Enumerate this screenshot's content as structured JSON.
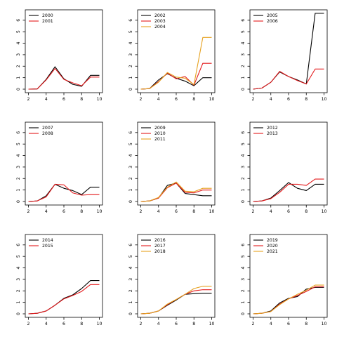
{
  "colors": {
    "axis": "#000000",
    "background": "#ffffff"
  },
  "chart_data": [
    {
      "type": "line",
      "x": [
        2,
        3,
        4,
        5,
        6,
        7,
        8,
        9,
        10
      ],
      "xticks": [
        2,
        4,
        6,
        8,
        10
      ],
      "yticks": [
        0,
        1,
        2,
        3,
        4,
        5,
        6
      ],
      "xlim": [
        2,
        10
      ],
      "ylim": [
        0,
        6.6
      ],
      "legend": "top-left",
      "series": [
        {
          "name": "2000",
          "color": "#000000",
          "values": [
            0,
            0.02,
            0.85,
            1.95,
            0.9,
            0.42,
            0.25,
            1.2,
            1.2
          ]
        },
        {
          "name": "2001",
          "color": "#e41a1c",
          "values": [
            0,
            0.02,
            0.8,
            1.8,
            0.85,
            0.55,
            0.3,
            1.05,
            1.05
          ]
        }
      ]
    },
    {
      "type": "line",
      "x": [
        2,
        3,
        4,
        5,
        6,
        7,
        8,
        9,
        10
      ],
      "xticks": [
        2,
        4,
        6,
        8,
        10
      ],
      "yticks": [
        0,
        1,
        2,
        3,
        4,
        5,
        6
      ],
      "xlim": [
        2,
        10
      ],
      "ylim": [
        0,
        6.6
      ],
      "legend": "top-left",
      "series": [
        {
          "name": "2002",
          "color": "#000000",
          "values": [
            0,
            0.05,
            0.8,
            1.35,
            0.95,
            0.7,
            0.3,
            1.0,
            1.0
          ]
        },
        {
          "name": "2003",
          "color": "#e41a1c",
          "values": [
            0,
            0.05,
            0.65,
            1.4,
            0.9,
            1.1,
            0.35,
            2.25,
            2.25
          ]
        },
        {
          "name": "2004",
          "color": "#e6a11f",
          "values": [
            0,
            0.05,
            0.6,
            1.45,
            1.05,
            0.95,
            0.4,
            4.5,
            4.5
          ]
        }
      ]
    },
    {
      "type": "line",
      "x": [
        2,
        3,
        4,
        5,
        6,
        7,
        8,
        9,
        10
      ],
      "xticks": [
        2,
        4,
        6,
        8,
        10
      ],
      "yticks": [
        0,
        1,
        2,
        3,
        4,
        5,
        6
      ],
      "xlim": [
        2,
        10
      ],
      "ylim": [
        0,
        6.6
      ],
      "legend": "top-left",
      "series": [
        {
          "name": "2005",
          "color": "#000000",
          "values": [
            0,
            0.1,
            0.6,
            1.5,
            1.1,
            0.8,
            0.45,
            6.6,
            6.6
          ]
        },
        {
          "name": "2006",
          "color": "#e41a1c",
          "values": [
            0,
            0.1,
            0.6,
            1.55,
            1.1,
            0.75,
            0.45,
            1.75,
            1.75
          ]
        }
      ]
    },
    {
      "type": "line",
      "x": [
        2,
        3,
        4,
        5,
        6,
        7,
        8,
        9,
        10
      ],
      "xticks": [
        2,
        4,
        6,
        8,
        10
      ],
      "yticks": [
        0,
        1,
        2,
        3,
        4,
        5,
        6
      ],
      "xlim": [
        2,
        10
      ],
      "ylim": [
        0,
        6.6
      ],
      "legend": "top-left",
      "series": [
        {
          "name": "2007",
          "color": "#000000",
          "values": [
            0,
            0.05,
            0.5,
            1.5,
            1.15,
            0.95,
            0.6,
            1.25,
            1.25
          ]
        },
        {
          "name": "2008",
          "color": "#e41a1c",
          "values": [
            0,
            0.05,
            0.4,
            1.5,
            1.45,
            0.75,
            0.55,
            0.6,
            0.6
          ]
        }
      ]
    },
    {
      "type": "line",
      "x": [
        2,
        3,
        4,
        5,
        6,
        7,
        8,
        9,
        10
      ],
      "xticks": [
        2,
        4,
        6,
        8,
        10
      ],
      "yticks": [
        0,
        1,
        2,
        3,
        4,
        5,
        6
      ],
      "xlim": [
        2,
        10
      ],
      "ylim": [
        0,
        6.6
      ],
      "legend": "top-left",
      "series": [
        {
          "name": "2009",
          "color": "#000000",
          "values": [
            0,
            0.05,
            0.3,
            1.4,
            1.6,
            0.7,
            0.6,
            0.5,
            0.5
          ]
        },
        {
          "name": "2010",
          "color": "#e41a1c",
          "values": [
            0,
            0.05,
            0.3,
            1.2,
            1.6,
            0.8,
            0.75,
            1.0,
            1.0
          ]
        },
        {
          "name": "2011",
          "color": "#e6a11f",
          "values": [
            0,
            0.05,
            0.35,
            1.25,
            1.7,
            0.9,
            0.85,
            1.15,
            1.15
          ]
        }
      ]
    },
    {
      "type": "line",
      "x": [
        2,
        3,
        4,
        5,
        6,
        7,
        8,
        9,
        10
      ],
      "xticks": [
        2,
        4,
        6,
        8,
        10
      ],
      "yticks": [
        0,
        1,
        2,
        3,
        4,
        5,
        6
      ],
      "xlim": [
        2,
        10
      ],
      "ylim": [
        0,
        6.6
      ],
      "legend": "top-left",
      "series": [
        {
          "name": "2012",
          "color": "#000000",
          "values": [
            0,
            0.05,
            0.3,
            0.95,
            1.65,
            1.15,
            0.95,
            1.5,
            1.5
          ]
        },
        {
          "name": "2013",
          "color": "#e41a1c",
          "values": [
            0,
            0.05,
            0.25,
            0.8,
            1.5,
            1.5,
            1.4,
            1.95,
            1.95
          ]
        }
      ]
    },
    {
      "type": "line",
      "x": [
        2,
        3,
        4,
        5,
        6,
        7,
        8,
        9,
        10
      ],
      "xticks": [
        2,
        4,
        6,
        8,
        10
      ],
      "yticks": [
        0,
        1,
        2,
        3,
        4,
        5,
        6
      ],
      "xlim": [
        2,
        10
      ],
      "ylim": [
        0,
        6.6
      ],
      "legend": "top-left",
      "series": [
        {
          "name": "2014",
          "color": "#000000",
          "values": [
            0,
            0.05,
            0.25,
            0.75,
            1.35,
            1.65,
            2.2,
            2.9,
            2.9
          ]
        },
        {
          "name": "2015",
          "color": "#e41a1c",
          "values": [
            0,
            0.05,
            0.25,
            0.75,
            1.3,
            1.6,
            1.95,
            2.55,
            2.55
          ]
        }
      ]
    },
    {
      "type": "line",
      "x": [
        2,
        3,
        4,
        5,
        6,
        7,
        8,
        9,
        10
      ],
      "xticks": [
        2,
        4,
        6,
        8,
        10
      ],
      "yticks": [
        0,
        1,
        2,
        3,
        4,
        5,
        6
      ],
      "xlim": [
        2,
        10
      ],
      "ylim": [
        0,
        6.6
      ],
      "legend": "top-left",
      "series": [
        {
          "name": "2016",
          "color": "#000000",
          "values": [
            0,
            0.05,
            0.25,
            0.75,
            1.2,
            1.7,
            1.75,
            1.8,
            1.8
          ]
        },
        {
          "name": "2017",
          "color": "#e41a1c",
          "values": [
            0,
            0.05,
            0.25,
            0.8,
            1.25,
            1.7,
            2.0,
            2.1,
            2.1
          ]
        },
        {
          "name": "2018",
          "color": "#e6a11f",
          "values": [
            0,
            0.05,
            0.25,
            0.85,
            1.25,
            1.7,
            2.2,
            2.4,
            2.4
          ]
        }
      ]
    },
    {
      "type": "line",
      "x": [
        2,
        3,
        4,
        5,
        6,
        7,
        8,
        9,
        10
      ],
      "xticks": [
        2,
        4,
        6,
        8,
        10
      ],
      "yticks": [
        0,
        1,
        2,
        3,
        4,
        5,
        6
      ],
      "xlim": [
        2,
        10
      ],
      "ylim": [
        0,
        6.6
      ],
      "legend": "top-left",
      "series": [
        {
          "name": "2019",
          "color": "#000000",
          "values": [
            0,
            0.05,
            0.25,
            0.95,
            1.35,
            1.5,
            2.15,
            2.3,
            2.3
          ]
        },
        {
          "name": "2020",
          "color": "#e41a1c",
          "values": [
            0,
            0.05,
            0.2,
            0.85,
            1.3,
            1.6,
            1.95,
            2.35,
            2.35
          ]
        },
        {
          "name": "2021",
          "color": "#e6a11f",
          "values": [
            0,
            0.05,
            0.2,
            0.8,
            1.3,
            1.7,
            2.05,
            2.5,
            2.5
          ]
        }
      ]
    }
  ]
}
